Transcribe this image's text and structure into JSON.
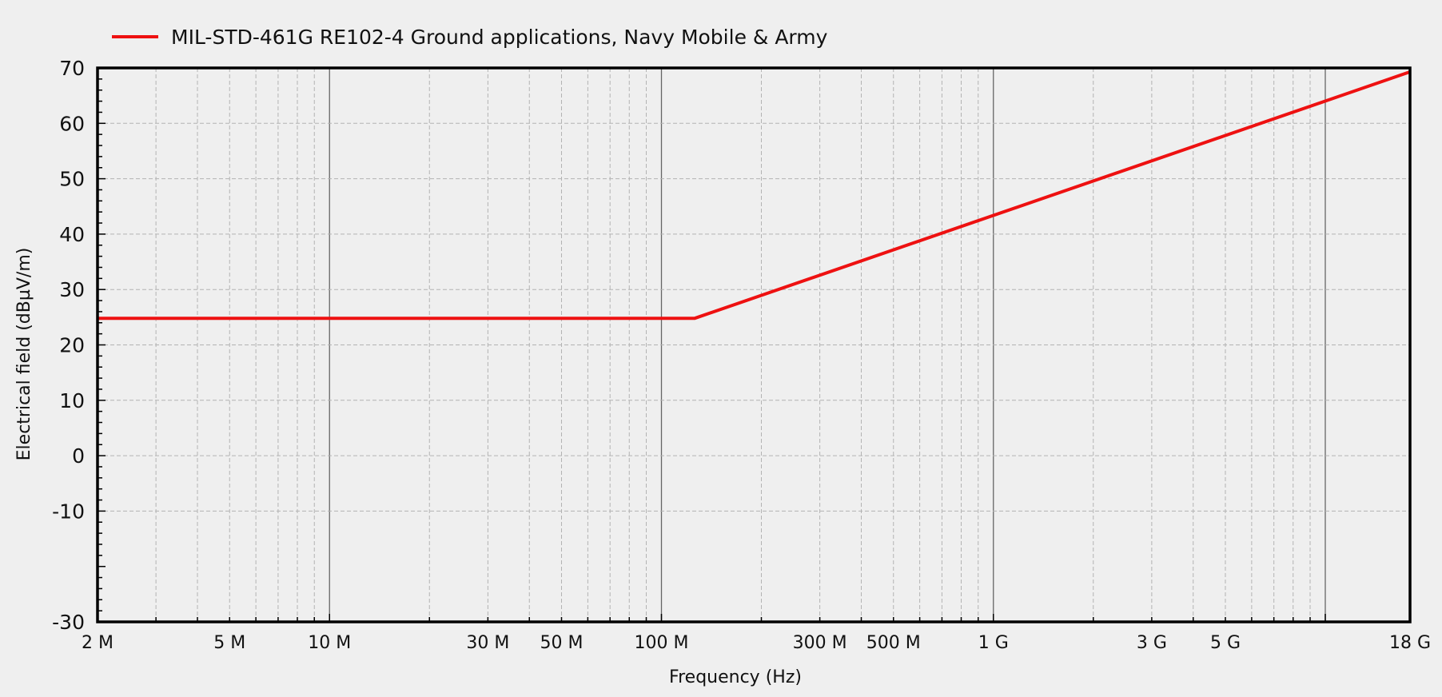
{
  "chart_data": {
    "type": "line",
    "title": "",
    "xlabel": "Frequency (Hz)",
    "ylabel": "Electrical field (dBµV/m)",
    "x_scale": "log",
    "xlim": [
      2000000,
      18000000000
    ],
    "ylim": [
      -30,
      70
    ],
    "y_ticks": [
      {
        "value": -30,
        "label": "-30"
      },
      {
        "value": -10,
        "label": "-10"
      },
      {
        "value": 0,
        "label": "0"
      },
      {
        "value": 10,
        "label": "10"
      },
      {
        "value": 20,
        "label": "20"
      },
      {
        "value": 30,
        "label": "30"
      },
      {
        "value": 40,
        "label": "40"
      },
      {
        "value": 50,
        "label": "50"
      },
      {
        "value": 60,
        "label": "60"
      },
      {
        "value": 70,
        "label": "70"
      }
    ],
    "x_ticks": [
      {
        "value": 2000000,
        "label": "2 M"
      },
      {
        "value": 5000000,
        "label": "5 M"
      },
      {
        "value": 10000000,
        "label": "10 M"
      },
      {
        "value": 30000000,
        "label": "30 M"
      },
      {
        "value": 50000000,
        "label": "50 M"
      },
      {
        "value": 100000000,
        "label": "100 M"
      },
      {
        "value": 300000000,
        "label": "300 M"
      },
      {
        "value": 500000000,
        "label": "500 M"
      },
      {
        "value": 1000000000,
        "label": "1 G"
      },
      {
        "value": 3000000000,
        "label": "3 G"
      },
      {
        "value": 5000000000,
        "label": "5 G"
      },
      {
        "value": 18000000000,
        "label": "18 G"
      }
    ],
    "grid": true,
    "legend_position": "top-left",
    "series": [
      {
        "name": "MIL-STD-461G RE102-4 Ground applications, Navy Mobile & Army",
        "color": "#ee1111",
        "x": [
          2000000,
          126000000,
          18000000000
        ],
        "y": [
          24.8,
          24.8,
          69.3
        ]
      }
    ]
  },
  "colors": {
    "background": "#efefef",
    "grid": "#b3b3b3",
    "decade_grid": "#666666",
    "axis": "#000000",
    "series": "#ee1111"
  }
}
